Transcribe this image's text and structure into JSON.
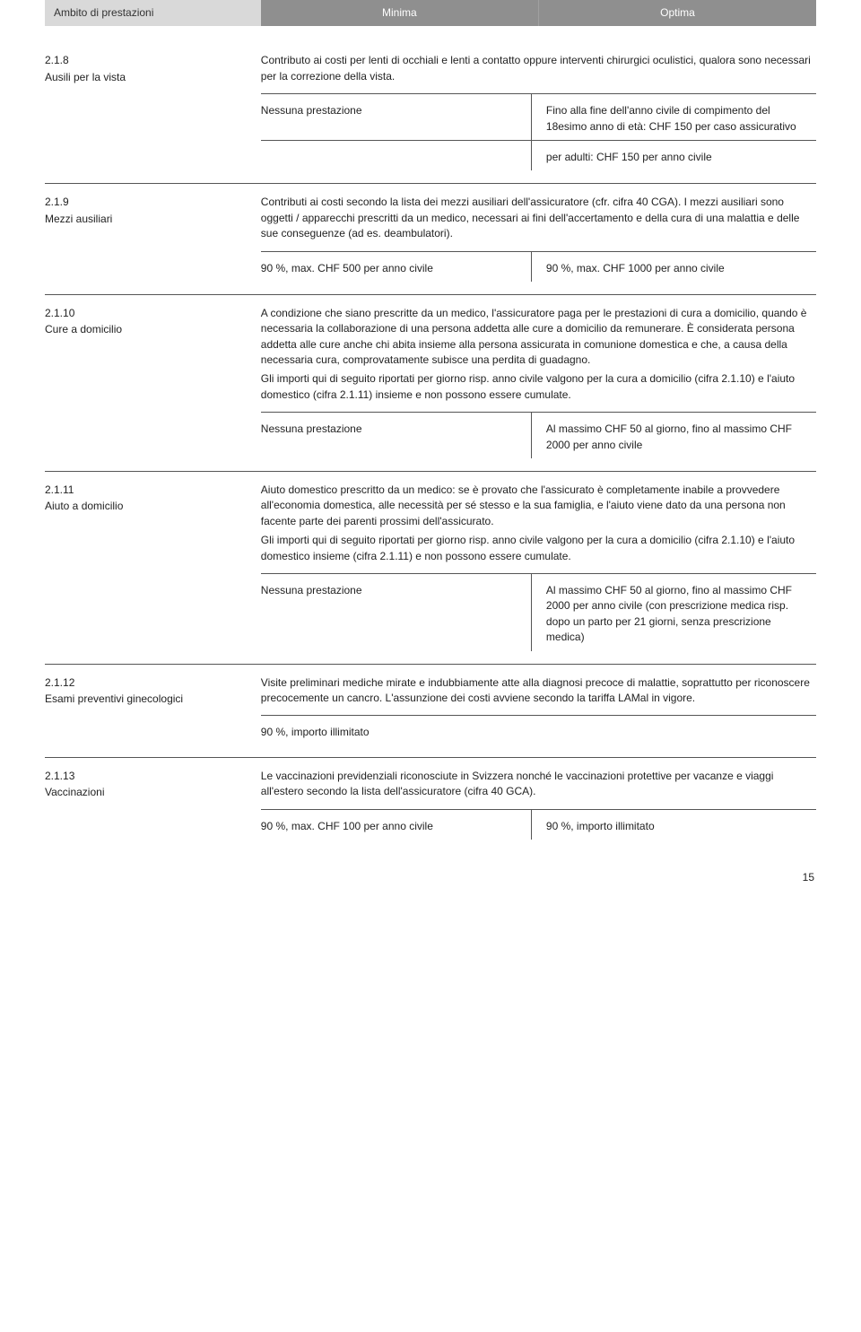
{
  "header": {
    "label": "Ambito di prestazioni",
    "col1": "Minima",
    "col2": "Optima"
  },
  "sections": [
    {
      "num": "2.1.8",
      "title": "Ausili per la vista",
      "desc": "Contributo ai costi per lenti di occhiali e lenti a contatto oppure interventi chirurgici oculistici, qualora sono necessari per la correzione della vista.",
      "rows": [
        {
          "type": "two",
          "left": "Nessuna prestazione",
          "right": "Fino alla fine dell'anno civile di compimento del 18esimo anno di età: CHF 150 per caso assicurativo"
        },
        {
          "type": "two",
          "left": "",
          "right": "per adulti: CHF 150 per anno civile"
        }
      ]
    },
    {
      "num": "2.1.9",
      "title": "Mezzi ausiliari",
      "desc": "Contributi ai costi secondo la lista dei mezzi ausiliari dell'assicuratore (cfr. cifra 40 CGA). I mezzi ausiliari sono oggetti / apparecchi prescritti da un medico, necessari ai fini dell'accertamento e della cura di una malattia e delle sue conseguenze (ad es. deambulatori).",
      "rows": [
        {
          "type": "two",
          "left": "90 %, max. CHF 500 per anno civile",
          "right": "90 %, max. CHF 1000 per anno civile"
        }
      ]
    },
    {
      "num": "2.1.10",
      "title": "Cure a domicilio",
      "desc": "A condizione che siano prescritte da un medico, l'assicuratore paga per le prestazioni di cura a domicilio, quando è necessaria la collaborazione di una persona addetta alle cure a domicilio da remunerare. È considerata persona addetta alle cure anche chi abita insieme alla persona assicurata in comunione domestica e che, a causa della necessaria cura, comprovatamente subisce una perdita di guadagno.\nGli importi qui di seguito riportati per giorno risp. anno civile valgono per la cura a domicilio (cifra 2.1.10) e l'aiuto domestico (cifra 2.1.11) insieme e non possono essere cumulate.",
      "rows": [
        {
          "type": "two",
          "left": "Nessuna prestazione",
          "right": "Al massimo CHF 50 al giorno, fino al massimo CHF 2000 per anno civile"
        }
      ]
    },
    {
      "num": "2.1.11",
      "title": "Aiuto a domicilio",
      "desc": "Aiuto domestico prescritto da un medico: se è provato che l'assicurato è completamente inabile a provvedere all'economia domestica, alle necessità per sé stesso e la sua famiglia, e l'aiuto viene dato da una persona non facente parte dei parenti prossimi dell'assicurato.\nGli importi qui di seguito riportati per giorno risp. anno civile valgono per la cura a domicilio (cifra 2.1.10) e l'aiuto domestico insieme (cifra 2.1.11) e non possono essere cumulate.",
      "rows": [
        {
          "type": "two",
          "left": "Nessuna prestazione",
          "right": "Al massimo CHF 50 al giorno, fino al massimo CHF 2000 per anno civile (con prescrizione medica risp. dopo un parto per 21 giorni, senza prescrizione medica)"
        }
      ]
    },
    {
      "num": "2.1.12",
      "title": "Esami preventivi ginecologici",
      "desc": "Visite preliminari mediche mirate e indubbiamente atte alla diagnosi precoce di malattie, soprattutto per riconoscere precocemente un cancro. L'assunzione dei costi avviene secondo la tariffa LAMal in vigore.",
      "rows": [
        {
          "type": "one",
          "text": "90 %, importo illimitato"
        }
      ]
    },
    {
      "num": "2.1.13",
      "title": "Vaccinazioni",
      "desc": "Le vaccinazioni previdenziali riconosciute in Svizzera nonché le vaccinazioni protettive per vacanze e viaggi all'estero secondo la lista dell'assicuratore (cifra 40 GCA).",
      "rows": [
        {
          "type": "two",
          "left": "90 %, max. CHF 100 per anno civile",
          "right": "90 %, importo illimitato"
        }
      ]
    }
  ],
  "pageNumber": "15"
}
